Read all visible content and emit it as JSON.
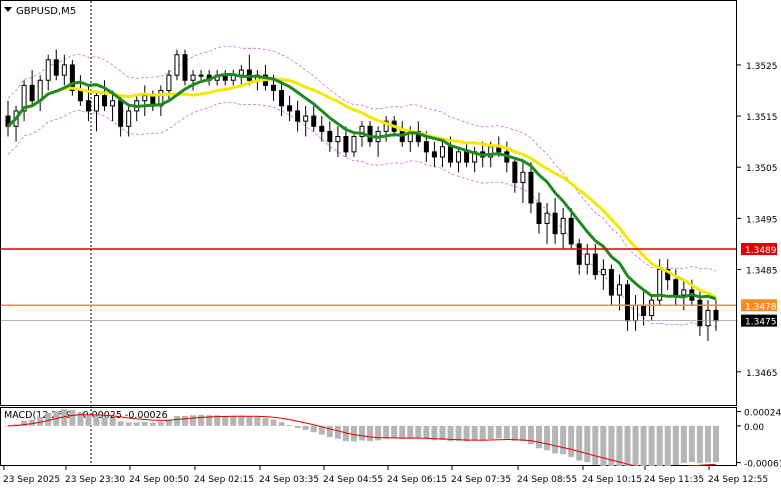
{
  "chart_data": [
    {
      "type": "candlestick",
      "symbol_label": "GBPUSD,M5",
      "y_ticks": [
        "1.3525",
        "1.3515",
        "1.3505",
        "1.3495",
        "1.3485",
        "1.3465"
      ],
      "ylim": [
        1.34585,
        1.35375
      ],
      "x_ticks": [
        "23 Sep 2025",
        "23 Sep 23:30",
        "24 Sep 00:50",
        "24 Sep 02:15",
        "24 Sep 03:35",
        "24 Sep 04:55",
        "24 Sep 06:15",
        "24 Sep 07:35",
        "24 Sep 08:55",
        "24 Sep 10:15",
        "24 Sep 11:35",
        "24 Sep 12:55"
      ],
      "current_price": "1.3475",
      "horizontal_levels": [
        {
          "value": 1.3489,
          "label": "1.3489",
          "color": "#e00000"
        },
        {
          "value": 1.3478,
          "label": "1.3478",
          "color": "#f58d1c"
        }
      ],
      "colors": {
        "bull": "#000000",
        "bear": "#000000",
        "ma_fast": "#1e8a1e",
        "ma_slow": "#f5e800",
        "bands": "#c86ee0",
        "level_support": "#e00000",
        "level_resist": "#f58d1c"
      },
      "grid": true,
      "legend": "top-left",
      "candles_ohlc": [
        [
          1.3515,
          1.3518,
          1.3511,
          1.3513
        ],
        [
          1.3513,
          1.3517,
          1.351,
          1.3516
        ],
        [
          1.3516,
          1.3522,
          1.3514,
          1.3521
        ],
        [
          1.3521,
          1.3524,
          1.3517,
          1.3518
        ],
        [
          1.3518,
          1.3523,
          1.3516,
          1.3522
        ],
        [
          1.3522,
          1.3527,
          1.352,
          1.3526
        ],
        [
          1.3526,
          1.3528,
          1.3522,
          1.3523
        ],
        [
          1.3523,
          1.3527,
          1.3521,
          1.3525
        ],
        [
          1.3525,
          1.3526,
          1.3519,
          1.352
        ],
        [
          1.352,
          1.3523,
          1.3517,
          1.3518
        ],
        [
          1.3518,
          1.3521,
          1.3514,
          1.3516
        ],
        [
          1.3516,
          1.352,
          1.3512,
          1.3519
        ],
        [
          1.3519,
          1.3522,
          1.3516,
          1.3517
        ],
        [
          1.3517,
          1.352,
          1.3514,
          1.3518
        ],
        [
          1.3518,
          1.3519,
          1.3511,
          1.3513
        ],
        [
          1.3513,
          1.3517,
          1.3511,
          1.3516
        ],
        [
          1.3516,
          1.3519,
          1.3514,
          1.3518
        ],
        [
          1.3518,
          1.3521,
          1.3515,
          1.3519
        ],
        [
          1.3519,
          1.352,
          1.3516,
          1.3517
        ],
        [
          1.3517,
          1.3521,
          1.3515,
          1.352
        ],
        [
          1.352,
          1.3524,
          1.3518,
          1.3523
        ],
        [
          1.3523,
          1.3528,
          1.3522,
          1.3527
        ],
        [
          1.3527,
          1.3528,
          1.3521,
          1.3522
        ],
        [
          1.3522,
          1.3524,
          1.352,
          1.3523
        ],
        [
          1.3523,
          1.3524,
          1.3522,
          1.3523
        ],
        [
          1.3523,
          1.3524,
          1.3521,
          1.3522
        ],
        [
          1.3522,
          1.3524,
          1.3521,
          1.3523
        ],
        [
          1.3523,
          1.3524,
          1.3521,
          1.3522
        ],
        [
          1.3522,
          1.3524,
          1.3521,
          1.3523
        ],
        [
          1.3523,
          1.3525,
          1.3521,
          1.3524
        ],
        [
          1.3524,
          1.3527,
          1.3521,
          1.3522
        ],
        [
          1.3522,
          1.3524,
          1.352,
          1.3523
        ],
        [
          1.3523,
          1.3525,
          1.352,
          1.3521
        ],
        [
          1.3521,
          1.3523,
          1.3518,
          1.352
        ],
        [
          1.352,
          1.3522,
          1.3515,
          1.3517
        ],
        [
          1.3517,
          1.3519,
          1.3514,
          1.3516
        ],
        [
          1.3516,
          1.3518,
          1.3512,
          1.3514
        ],
        [
          1.3514,
          1.3517,
          1.3511,
          1.3515
        ],
        [
          1.3515,
          1.3517,
          1.3512,
          1.3513
        ],
        [
          1.3513,
          1.3515,
          1.351,
          1.3512
        ],
        [
          1.3512,
          1.3514,
          1.3508,
          1.351
        ],
        [
          1.351,
          1.3513,
          1.3507,
          1.3511
        ],
        [
          1.3511,
          1.3513,
          1.3507,
          1.3508
        ],
        [
          1.3508,
          1.3512,
          1.3507,
          1.3511
        ],
        [
          1.3511,
          1.3514,
          1.3509,
          1.3513
        ],
        [
          1.3513,
          1.3514,
          1.3509,
          1.351
        ],
        [
          1.351,
          1.3513,
          1.3507,
          1.3512
        ],
        [
          1.3512,
          1.3515,
          1.351,
          1.3514
        ],
        [
          1.3514,
          1.3515,
          1.3511,
          1.3512
        ],
        [
          1.3512,
          1.3514,
          1.3509,
          1.351
        ],
        [
          1.351,
          1.3513,
          1.3508,
          1.3512
        ],
        [
          1.3512,
          1.3514,
          1.3509,
          1.351
        ],
        [
          1.351,
          1.3512,
          1.3506,
          1.3508
        ],
        [
          1.3508,
          1.351,
          1.3505,
          1.3507
        ],
        [
          1.3507,
          1.351,
          1.3505,
          1.3509
        ],
        [
          1.3509,
          1.3511,
          1.3505,
          1.3506
        ],
        [
          1.3506,
          1.3509,
          1.3504,
          1.3508
        ],
        [
          1.3508,
          1.351,
          1.3505,
          1.3506
        ],
        [
          1.3506,
          1.3509,
          1.3504,
          1.3508
        ],
        [
          1.3508,
          1.351,
          1.3505,
          1.3507
        ],
        [
          1.3507,
          1.351,
          1.3505,
          1.3509
        ],
        [
          1.3509,
          1.3511,
          1.3507,
          1.3508
        ],
        [
          1.3508,
          1.351,
          1.3504,
          1.3506
        ],
        [
          1.3506,
          1.3507,
          1.35,
          1.3502
        ],
        [
          1.3502,
          1.3506,
          1.3498,
          1.3504
        ],
        [
          1.3504,
          1.3506,
          1.3496,
          1.3498
        ],
        [
          1.3498,
          1.35,
          1.3492,
          1.3494
        ],
        [
          1.3494,
          1.3498,
          1.349,
          1.3496
        ],
        [
          1.3496,
          1.3499,
          1.349,
          1.3492
        ],
        [
          1.3492,
          1.3497,
          1.3489,
          1.3495
        ],
        [
          1.3495,
          1.3497,
          1.3489,
          1.349
        ],
        [
          1.349,
          1.3491,
          1.3484,
          1.3486
        ],
        [
          1.3486,
          1.349,
          1.3484,
          1.3488
        ],
        [
          1.3488,
          1.349,
          1.3483,
          1.3484
        ],
        [
          1.3484,
          1.3487,
          1.3481,
          1.3485
        ],
        [
          1.3485,
          1.3486,
          1.3478,
          1.348
        ],
        [
          1.348,
          1.3484,
          1.3477,
          1.3482
        ],
        [
          1.3482,
          1.3483,
          1.3473,
          1.3475
        ],
        [
          1.3475,
          1.348,
          1.3473,
          1.3478
        ],
        [
          1.3478,
          1.3481,
          1.3474,
          1.3476
        ],
        [
          1.3476,
          1.348,
          1.3475,
          1.3479
        ],
        [
          1.3479,
          1.3487,
          1.3478,
          1.3485
        ],
        [
          1.3485,
          1.3487,
          1.3481,
          1.3483
        ],
        [
          1.3483,
          1.3485,
          1.3478,
          1.348
        ],
        [
          1.348,
          1.3483,
          1.3477,
          1.3481
        ],
        [
          1.3481,
          1.3483,
          1.3478,
          1.3479
        ],
        [
          1.3479,
          1.3481,
          1.3472,
          1.3474
        ],
        [
          1.3474,
          1.3479,
          1.3471,
          1.3477
        ],
        [
          1.3477,
          1.3479,
          1.3473,
          1.3475
        ]
      ]
    },
    {
      "type": "histogram",
      "label": "MACD(12,26,9) -0.00025 -0.00026",
      "y_ticks": [
        "0.00024",
        "0.00",
        "-0.00061"
      ],
      "ylim": [
        -0.00065,
        0.00028
      ],
      "colors": {
        "bars": "#b5b5b5",
        "signal": "#e00000"
      }
    }
  ]
}
